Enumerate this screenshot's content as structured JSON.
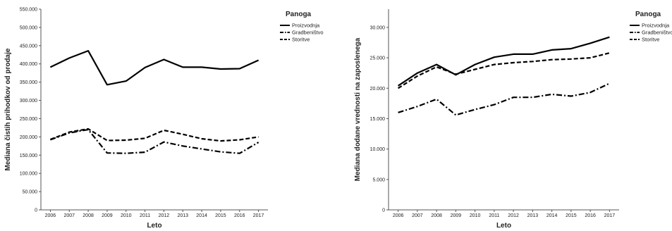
{
  "colors": {
    "line": "#000000",
    "axis": "#555555",
    "background": "#ffffff"
  },
  "chart_data": [
    {
      "type": "line",
      "xlabel": "Leto",
      "ylabel": "Mediana čistih prihodkov od prodaje",
      "x": [
        "2006",
        "2007",
        "2008",
        "2009",
        "2010",
        "2011",
        "2012",
        "2013",
        "2014",
        "2015",
        "2016",
        "2017"
      ],
      "ylim": [
        0,
        550000
      ],
      "yticks": [
        0,
        50000,
        100000,
        150000,
        200000,
        250000,
        300000,
        350000,
        400000,
        450000,
        500000,
        550000
      ],
      "ytick_labels": [
        "0",
        "50.000",
        "100.000",
        "150.000",
        "200.000",
        "250.000",
        "300.000",
        "350.000",
        "400.000",
        "450.000",
        "500.000",
        "550.000"
      ],
      "grid": false,
      "legend_title": "Panoga",
      "legend_position": "right",
      "series": [
        {
          "name": "Proizvodnja",
          "style": "solid",
          "values": [
            391000,
            416000,
            436000,
            343000,
            353000,
            390000,
            412000,
            391000,
            391000,
            386000,
            387000,
            410000
          ]
        },
        {
          "name": "Gradbeništvo",
          "style": "dashdot",
          "values": [
            192000,
            211000,
            220000,
            156000,
            155000,
            158000,
            186000,
            175000,
            167000,
            159000,
            155000,
            185000
          ]
        },
        {
          "name": "Storitve",
          "style": "dashed",
          "values": [
            193000,
            213000,
            222000,
            190000,
            191000,
            196000,
            218000,
            207000,
            195000,
            189000,
            192000,
            200000
          ]
        }
      ]
    },
    {
      "type": "line",
      "xlabel": "Leto",
      "ylabel": "Mediana dodane vrednosti na zaposlenega",
      "x": [
        "2006",
        "2007",
        "2008",
        "2009",
        "2010",
        "2011",
        "2012",
        "2013",
        "2014",
        "2015",
        "2016",
        "2017"
      ],
      "ylim": [
        0,
        33000
      ],
      "yticks": [
        0,
        5000,
        10000,
        15000,
        20000,
        25000,
        30000
      ],
      "ytick_labels": [
        "0",
        "5.000",
        "10.000",
        "15.000",
        "20.000",
        "25.000",
        "30.000"
      ],
      "grid": false,
      "legend_title": "Panoga",
      "legend_position": "right",
      "series": [
        {
          "name": "Proizvodnja",
          "style": "solid",
          "values": [
            20400,
            22500,
            23900,
            22200,
            23900,
            25100,
            25600,
            25600,
            26300,
            26500,
            27400,
            28400
          ]
        },
        {
          "name": "Gradbeništvo",
          "style": "dashdot",
          "values": [
            16000,
            17000,
            18200,
            15600,
            16500,
            17300,
            18500,
            18500,
            19000,
            18700,
            19300,
            20800
          ]
        },
        {
          "name": "Storitve",
          "style": "dashed",
          "values": [
            20000,
            22000,
            23500,
            22300,
            23100,
            23900,
            24200,
            24400,
            24700,
            24800,
            25000,
            25800
          ]
        }
      ]
    }
  ]
}
